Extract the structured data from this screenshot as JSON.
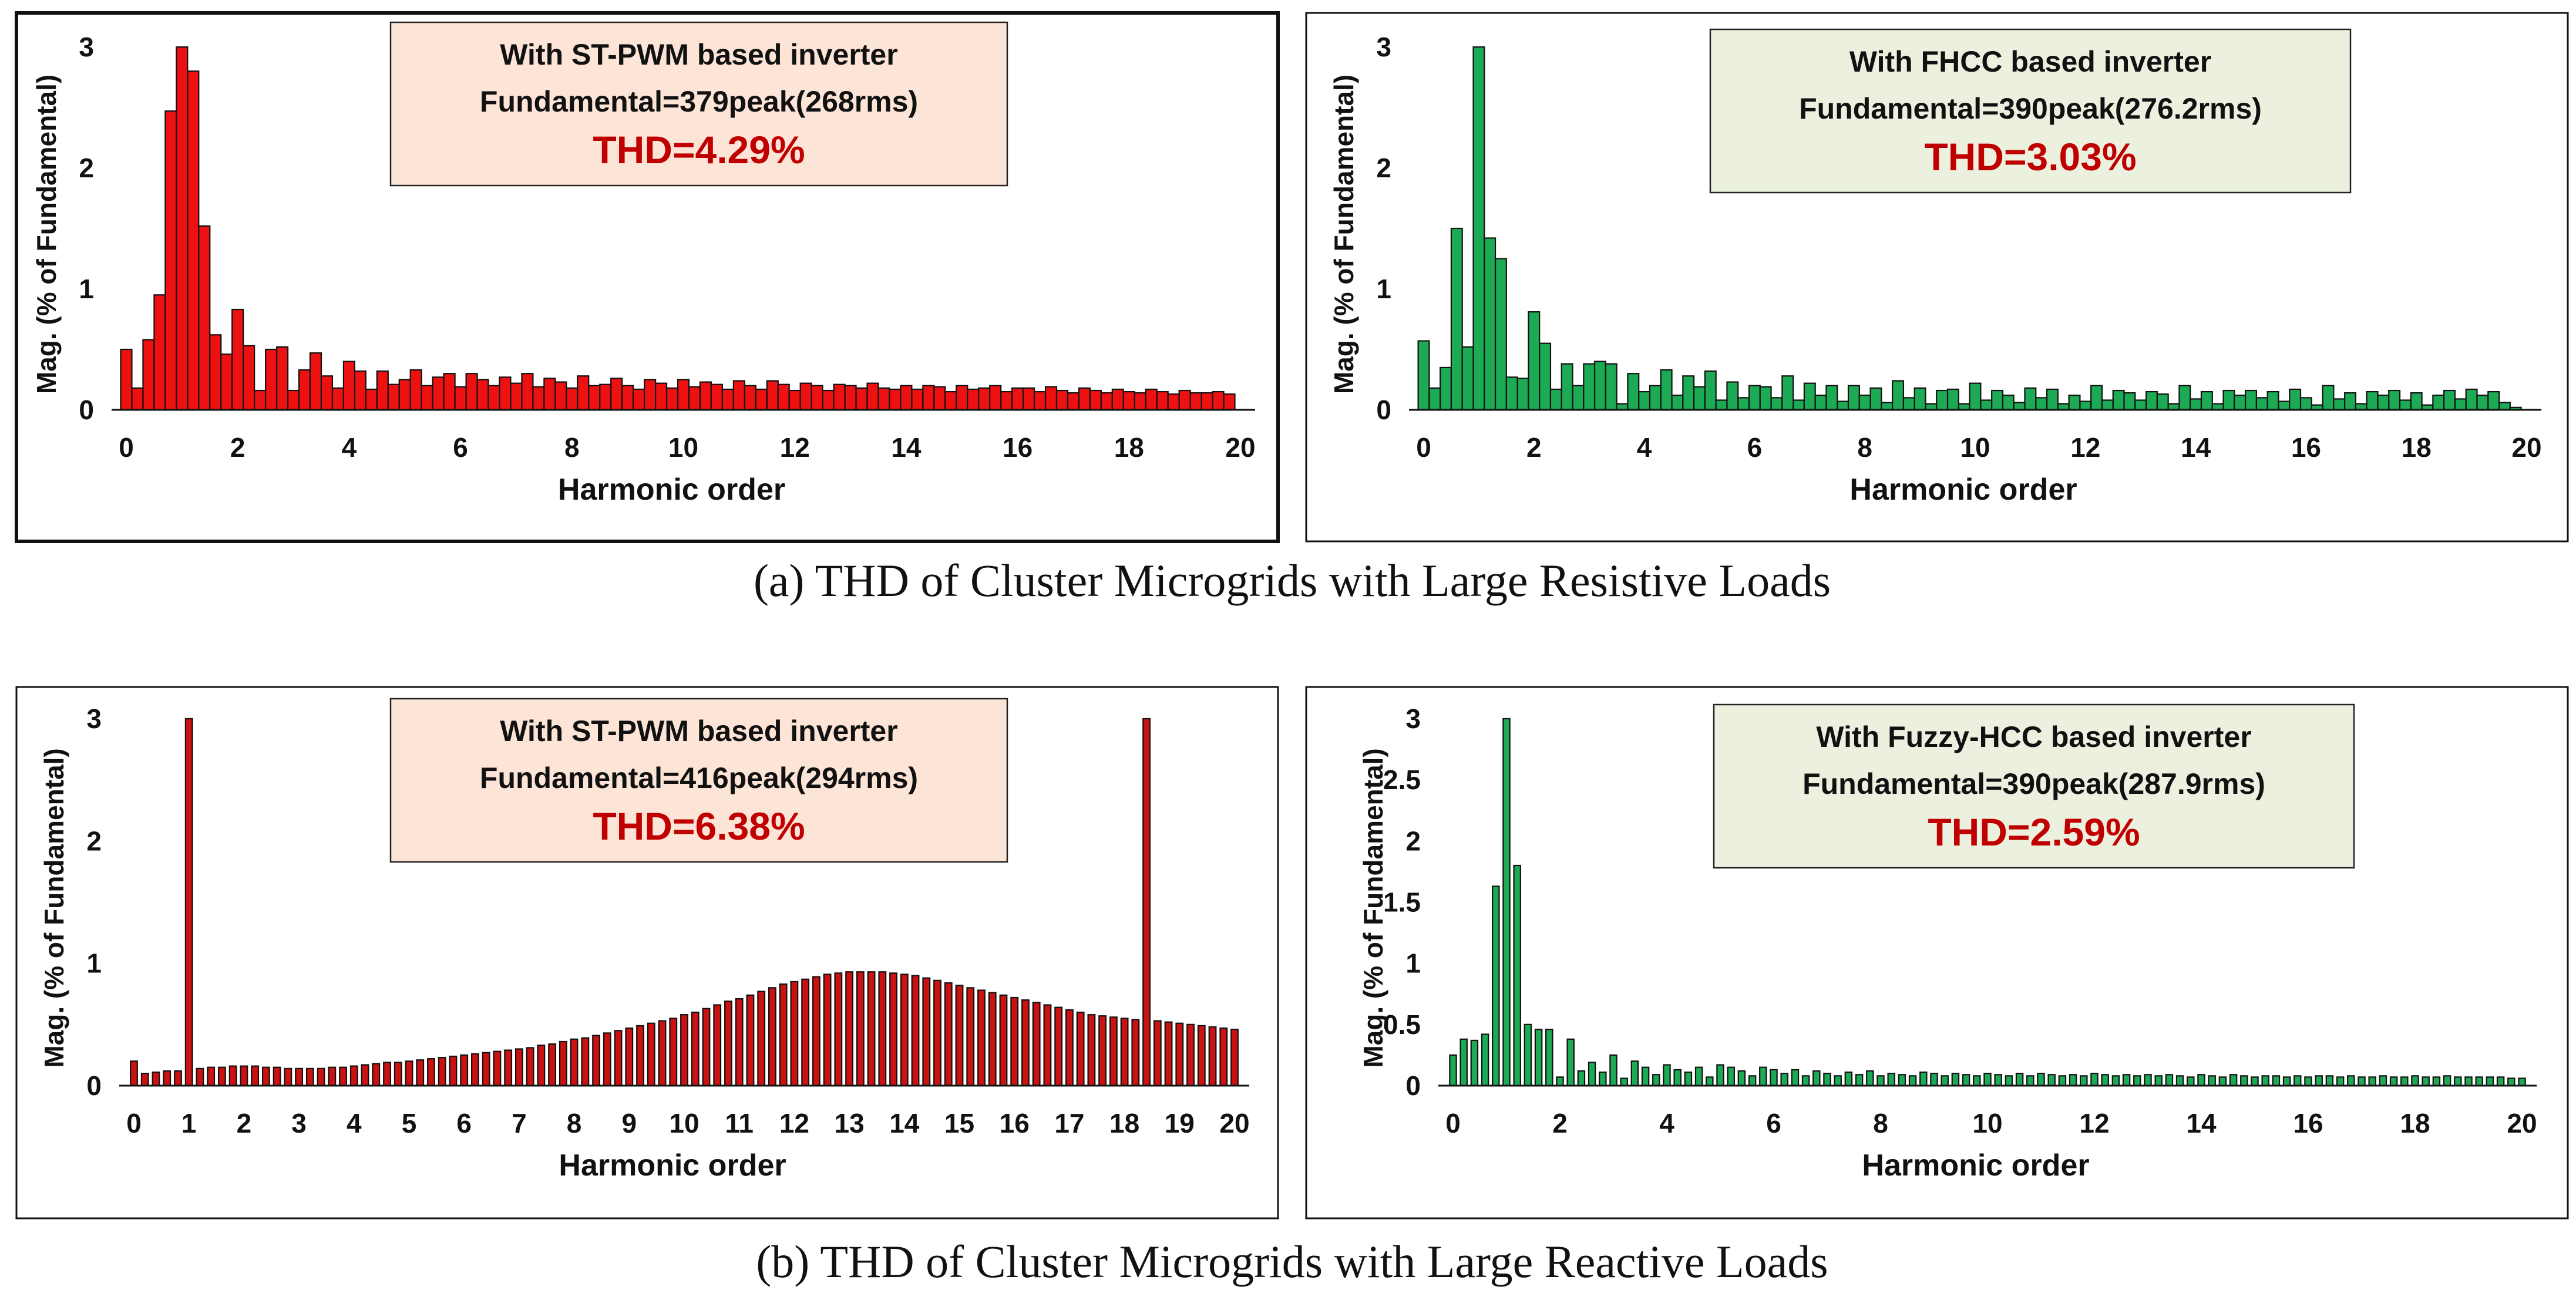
{
  "captions": {
    "a": "(a) THD of Cluster Microgrids with Large Resistive Loads",
    "b": "(b) THD of Cluster Microgrids with Large Reactive Loads"
  },
  "colors": {
    "red_fill": "#ee1111",
    "dark_red_fill": "#cc1111",
    "green_fill": "#1daa55",
    "thd_text": "#c00000",
    "peach_box": "#fce4d6",
    "green_box": "#ebf1de",
    "frame": "#111111"
  },
  "chart_data": [
    {
      "id": "a-left",
      "type": "bar",
      "bar_color": "#ee1111",
      "box_fill": "#fce4d6",
      "title": "With ST-PWM based inverter",
      "subtitle": "Fundamental=379peak(268rms)",
      "thd": "THD=4.29%",
      "xlabel": "Harmonic order",
      "ylabel": "Mag. (% of Fundamental)",
      "xlim": [
        0,
        20
      ],
      "ylim": [
        0,
        3
      ],
      "xticks": [
        0,
        2,
        4,
        6,
        8,
        10,
        12,
        14,
        16,
        18,
        20
      ],
      "yticks": [
        0,
        1,
        2,
        3
      ],
      "x_step": 0.2,
      "values": [
        0.5,
        0.18,
        0.58,
        0.95,
        2.47,
        3.0,
        2.8,
        1.52,
        0.62,
        0.46,
        0.83,
        0.53,
        0.16,
        0.5,
        0.52,
        0.16,
        0.33,
        0.47,
        0.28,
        0.18,
        0.4,
        0.32,
        0.17,
        0.32,
        0.21,
        0.25,
        0.33,
        0.2,
        0.27,
        0.3,
        0.19,
        0.3,
        0.25,
        0.2,
        0.27,
        0.22,
        0.3,
        0.19,
        0.26,
        0.23,
        0.18,
        0.28,
        0.2,
        0.21,
        0.26,
        0.2,
        0.17,
        0.25,
        0.22,
        0.18,
        0.25,
        0.19,
        0.23,
        0.21,
        0.17,
        0.24,
        0.2,
        0.17,
        0.24,
        0.21,
        0.16,
        0.22,
        0.2,
        0.16,
        0.21,
        0.2,
        0.18,
        0.22,
        0.18,
        0.17,
        0.2,
        0.17,
        0.2,
        0.19,
        0.15,
        0.2,
        0.17,
        0.18,
        0.2,
        0.15,
        0.18,
        0.18,
        0.15,
        0.19,
        0.16,
        0.14,
        0.18,
        0.16,
        0.14,
        0.17,
        0.15,
        0.14,
        0.17,
        0.15,
        0.13,
        0.16,
        0.14,
        0.14,
        0.15,
        0.13
      ]
    },
    {
      "id": "a-right",
      "type": "bar",
      "bar_color": "#1daa55",
      "box_fill": "#ebf1de",
      "title": "With FHCC based inverter",
      "subtitle": "Fundamental=390peak(276.2rms)",
      "thd": "THD=3.03%",
      "xlabel": "Harmonic order",
      "ylabel": "Mag. (% of Fundamental)",
      "xlim": [
        0,
        20
      ],
      "ylim": [
        0,
        3
      ],
      "xticks": [
        0,
        2,
        4,
        6,
        8,
        10,
        12,
        14,
        16,
        18,
        20
      ],
      "yticks": [
        0,
        1,
        2,
        3
      ],
      "x_step": 0.2,
      "values": [
        0.57,
        0.18,
        0.35,
        1.5,
        0.52,
        3.0,
        1.42,
        1.25,
        0.27,
        0.26,
        0.81,
        0.55,
        0.17,
        0.38,
        0.2,
        0.38,
        0.4,
        0.38,
        0.05,
        0.3,
        0.15,
        0.2,
        0.33,
        0.12,
        0.28,
        0.19,
        0.32,
        0.08,
        0.23,
        0.1,
        0.2,
        0.19,
        0.1,
        0.28,
        0.08,
        0.22,
        0.12,
        0.2,
        0.07,
        0.2,
        0.12,
        0.18,
        0.06,
        0.24,
        0.1,
        0.18,
        0.05,
        0.16,
        0.17,
        0.05,
        0.22,
        0.08,
        0.16,
        0.12,
        0.06,
        0.18,
        0.1,
        0.17,
        0.05,
        0.12,
        0.07,
        0.2,
        0.08,
        0.16,
        0.14,
        0.08,
        0.15,
        0.13,
        0.05,
        0.2,
        0.09,
        0.15,
        0.05,
        0.16,
        0.12,
        0.16,
        0.1,
        0.15,
        0.07,
        0.17,
        0.1,
        0.04,
        0.2,
        0.09,
        0.14,
        0.05,
        0.15,
        0.12,
        0.16,
        0.08,
        0.14,
        0.04,
        0.12,
        0.16,
        0.09,
        0.17,
        0.12,
        0.15,
        0.06,
        0.02
      ]
    },
    {
      "id": "b-left",
      "type": "bar",
      "bar_color": "#cc1111",
      "box_fill": "#fce4d6",
      "title": "With ST-PWM based inverter",
      "subtitle": "Fundamental=416peak(294rms)",
      "thd": "THD=6.38%",
      "xlabel": "Harmonic order",
      "ylabel": "Mag. (% of Fundamental)",
      "xlim": [
        0,
        20
      ],
      "ylim": [
        0,
        3
      ],
      "xticks": [
        0,
        1,
        2,
        3,
        4,
        5,
        6,
        7,
        8,
        9,
        10,
        11,
        12,
        13,
        14,
        15,
        16,
        17,
        18,
        19,
        20
      ],
      "yticks": [
        0,
        1,
        2,
        3
      ],
      "x_step": 0.2,
      "values": [
        0.2,
        0.1,
        0.11,
        0.12,
        0.12,
        3.0,
        0.14,
        0.15,
        0.15,
        0.16,
        0.16,
        0.16,
        0.15,
        0.15,
        0.14,
        0.14,
        0.14,
        0.14,
        0.15,
        0.15,
        0.16,
        0.17,
        0.18,
        0.19,
        0.19,
        0.2,
        0.21,
        0.22,
        0.23,
        0.24,
        0.25,
        0.26,
        0.27,
        0.28,
        0.29,
        0.3,
        0.31,
        0.33,
        0.34,
        0.36,
        0.38,
        0.39,
        0.41,
        0.43,
        0.45,
        0.47,
        0.49,
        0.51,
        0.53,
        0.55,
        0.58,
        0.6,
        0.63,
        0.66,
        0.69,
        0.71,
        0.74,
        0.77,
        0.8,
        0.83,
        0.85,
        0.87,
        0.89,
        0.91,
        0.92,
        0.93,
        0.93,
        0.93,
        0.93,
        0.92,
        0.91,
        0.9,
        0.88,
        0.86,
        0.84,
        0.82,
        0.8,
        0.78,
        0.76,
        0.74,
        0.72,
        0.7,
        0.68,
        0.66,
        0.64,
        0.62,
        0.6,
        0.58,
        0.57,
        0.56,
        0.55,
        0.54,
        3.0,
        0.53,
        0.52,
        0.51,
        0.5,
        0.49,
        0.48,
        0.47,
        0.46
      ]
    },
    {
      "id": "b-right",
      "type": "bar",
      "bar_color": "#1daa55",
      "box_fill": "#ebf1de",
      "title": "With Fuzzy-HCC based inverter",
      "subtitle": "Fundamental=390peak(287.9rms)",
      "thd": "THD=2.59%",
      "xlabel": "Harmonic order",
      "ylabel": "Mag. (% of Fundamental)",
      "xlim": [
        0,
        20
      ],
      "ylim": [
        0,
        3
      ],
      "xticks": [
        0,
        2,
        4,
        6,
        8,
        10,
        12,
        14,
        16,
        18,
        20
      ],
      "yticks": [
        0,
        0.5,
        1,
        1.5,
        2,
        2.5,
        3
      ],
      "ytick_labels": [
        "0",
        "0.5",
        "1",
        "1.5",
        "2",
        "2.5",
        "3"
      ],
      "x_step": 0.2,
      "values": [
        0.25,
        0.38,
        0.37,
        0.42,
        1.63,
        3.0,
        1.8,
        0.5,
        0.46,
        0.46,
        0.07,
        0.38,
        0.12,
        0.19,
        0.11,
        0.25,
        0.06,
        0.2,
        0.15,
        0.09,
        0.17,
        0.13,
        0.11,
        0.15,
        0.07,
        0.17,
        0.15,
        0.12,
        0.08,
        0.15,
        0.13,
        0.1,
        0.13,
        0.08,
        0.12,
        0.1,
        0.08,
        0.11,
        0.09,
        0.12,
        0.08,
        0.1,
        0.09,
        0.08,
        0.11,
        0.1,
        0.08,
        0.1,
        0.09,
        0.08,
        0.1,
        0.09,
        0.08,
        0.1,
        0.08,
        0.1,
        0.09,
        0.08,
        0.09,
        0.08,
        0.1,
        0.09,
        0.08,
        0.09,
        0.08,
        0.09,
        0.08,
        0.09,
        0.08,
        0.07,
        0.09,
        0.08,
        0.07,
        0.09,
        0.08,
        0.07,
        0.08,
        0.08,
        0.07,
        0.08,
        0.07,
        0.08,
        0.08,
        0.07,
        0.08,
        0.07,
        0.07,
        0.08,
        0.07,
        0.07,
        0.08,
        0.07,
        0.07,
        0.08,
        0.07,
        0.07,
        0.07,
        0.07,
        0.07,
        0.06,
        0.06
      ]
    }
  ]
}
